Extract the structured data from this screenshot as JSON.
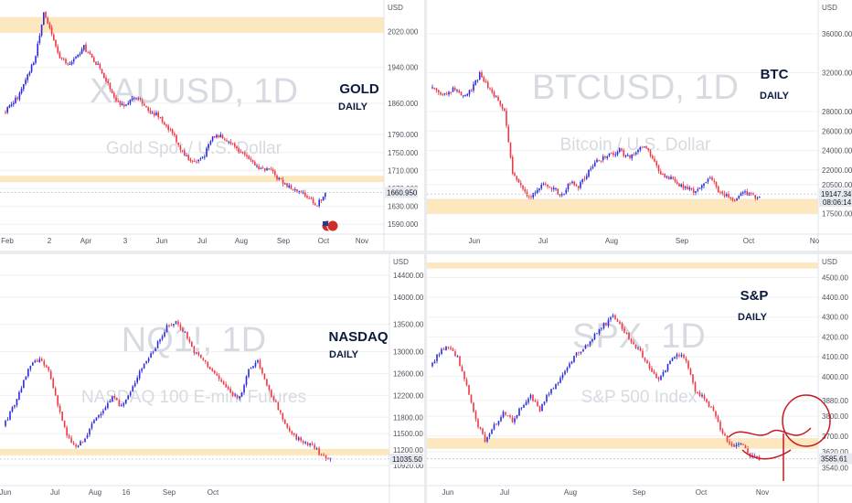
{
  "colors": {
    "up": "#2a2ae0",
    "down": "#f23645",
    "zone": "#fbe3b3",
    "grid": "#eef0f3",
    "title": "#0b1a3d",
    "watermark": "#d7dae1",
    "signature": "#c8191e"
  },
  "chart_data": [
    {
      "type": "candlestick",
      "symbol": "XAUUSD",
      "title": "GOLD",
      "subtitle": "DAILY",
      "watermark": "XAUUSD, 1D",
      "watermark_sub": "Gold Spot / U.S. Dollar",
      "currency": "USD",
      "y_ticks": [
        "2020.000",
        "1940.000",
        "1860.000",
        "1790.000",
        "1750.000",
        "1710.000",
        "1670.000",
        "1630.000",
        "1590.000"
      ],
      "x_ticks": [
        "Feb",
        "2",
        "Apr",
        "3",
        "Jun",
        "Jul",
        "Aug",
        "Sep",
        "Oct",
        "Nov"
      ],
      "last_price": "1660.950",
      "ylim": [
        1570,
        2080
      ],
      "zones": [
        [
          2017,
          2052
        ],
        [
          1684,
          1698
        ]
      ],
      "path": [
        1840,
        1855,
        1880,
        1920,
        1965,
        2065,
        2010,
        1965,
        1945,
        1960,
        1985,
        1960,
        1940,
        1900,
        1870,
        1850,
        1868,
        1870,
        1845,
        1835,
        1815,
        1795,
        1760,
        1735,
        1730,
        1745,
        1785,
        1790,
        1775,
        1760,
        1740,
        1725,
        1715,
        1710,
        1695,
        1680,
        1668,
        1658,
        1650,
        1633,
        1662
      ]
    },
    {
      "type": "candlestick",
      "symbol": "BTCUSD",
      "title": "BTC",
      "subtitle": "DAILY",
      "watermark": "BTCUSD, 1D",
      "watermark_sub": "Bitcoin / U.S. Dollar",
      "currency": "USD",
      "y_ticks": [
        "36000.00",
        "32000.00",
        "28000.00",
        "26000.00",
        "24000.00",
        "22000.00",
        "20500.00",
        "19000.00",
        "17500.00"
      ],
      "x_ticks": [
        "Jun",
        "Jul",
        "Aug",
        "Sep",
        "Oct",
        "No"
      ],
      "last_price": "19147.34",
      "countdown": "08:06:14",
      "ylim": [
        15500,
        39000
      ],
      "zones": [
        [
          17500,
          19000
        ]
      ],
      "path": [
        30500,
        29800,
        30000,
        30400,
        29600,
        30200,
        31800,
        30500,
        29500,
        28200,
        21500,
        20500,
        19200,
        20000,
        20600,
        20100,
        19300,
        20800,
        20300,
        21500,
        22800,
        23300,
        23600,
        24000,
        23300,
        23900,
        24500,
        23100,
        21600,
        21200,
        20600,
        20100,
        19800,
        20200,
        21300,
        19900,
        19300,
        19000,
        19700,
        19400,
        19200
      ]
    },
    {
      "type": "candlestick",
      "symbol": "NQ1!",
      "title": "NASDAQ",
      "subtitle": "DAILY",
      "watermark": "NQ1!, 1D",
      "watermark_sub": "NASDAQ 100 E-mini Futures",
      "currency": "USD",
      "y_ticks": [
        "14400.00",
        "14000.00",
        "13500.00",
        "13000.00",
        "12600.00",
        "12200.00",
        "11800.00",
        "11500.00",
        "11200.00",
        "10920.00"
      ],
      "x_ticks": [
        "Jun",
        "Jul",
        "Aug",
        "16",
        "Sep",
        "Oct"
      ],
      "last_price": "11035.50",
      "ylim": [
        10800,
        14650
      ],
      "zones": [
        [
          11100,
          11220
        ]
      ],
      "path": [
        11650,
        11950,
        12350,
        12750,
        12850,
        12650,
        12050,
        11450,
        11250,
        11400,
        11750,
        11950,
        12150,
        12000,
        12250,
        12650,
        12900,
        13150,
        13450,
        13550,
        13350,
        13000,
        12850,
        12650,
        12450,
        12250,
        12150,
        12650,
        12850,
        12350,
        12050,
        11650,
        11450,
        11350,
        11300,
        11100,
        11050
      ]
    },
    {
      "type": "candlestick",
      "symbol": "SPX",
      "title": "S&P",
      "subtitle": "DAILY",
      "watermark": "SPX, 1D",
      "watermark_sub": "S&P 500 Index",
      "currency": "USD",
      "y_ticks": [
        "4500.00",
        "4400.00",
        "4300.00",
        "4200.00",
        "4100.00",
        "4000.00",
        "3880.00",
        "3800.00",
        "3700.00",
        "3620.00",
        "3540.00"
      ],
      "x_ticks": [
        "Jun",
        "Jul",
        "Aug",
        "Sep",
        "Oct",
        "Nov"
      ],
      "last_price": "3585.61",
      "ylim": [
        3510,
        4580
      ],
      "zones": [
        [
          3636,
          3690
        ],
        [
          4545,
          4575
        ]
      ],
      "path": [
        4050,
        4120,
        4150,
        4100,
        3950,
        3780,
        3680,
        3750,
        3820,
        3780,
        3850,
        3900,
        3830,
        3920,
        3980,
        4050,
        4120,
        4150,
        4210,
        4260,
        4300,
        4240,
        4180,
        4120,
        4050,
        3980,
        4060,
        4120,
        4080,
        3920,
        3890,
        3820,
        3710,
        3650,
        3660,
        3600,
        3585
      ]
    }
  ]
}
